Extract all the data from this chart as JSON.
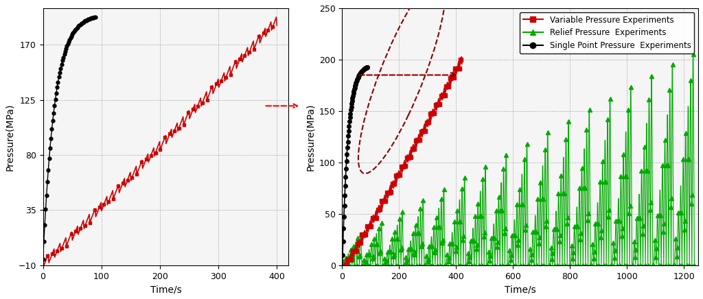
{
  "left_plot": {
    "xlim": [
      0,
      420
    ],
    "ylim": [
      -10,
      200
    ],
    "yticks": [
      -10,
      35,
      80,
      125,
      170
    ],
    "xticks": [
      0,
      100,
      200,
      300,
      400
    ],
    "xlabel": "Time/s",
    "ylabel": "Pressure(MPa)",
    "bg_color": "#f5f5f5"
  },
  "right_plot": {
    "xlim": [
      0,
      1250
    ],
    "ylim": [
      0,
      250
    ],
    "yticks": [
      0,
      50,
      100,
      150,
      200,
      250
    ],
    "xticks": [
      0,
      200,
      400,
      600,
      800,
      1000,
      1200
    ],
    "xlabel": "Time/s",
    "ylabel": "Pressure(MPa)",
    "bg_color": "#f5f5f5"
  },
  "colors": {
    "variable": "#cc0000",
    "relief": "#00aa00",
    "single": "#000000"
  },
  "legend": {
    "variable": "Variable Pressure Experiments",
    "relief": "Relief Pressure  Experiments",
    "single": "Single Point Pressure  Experiments"
  }
}
